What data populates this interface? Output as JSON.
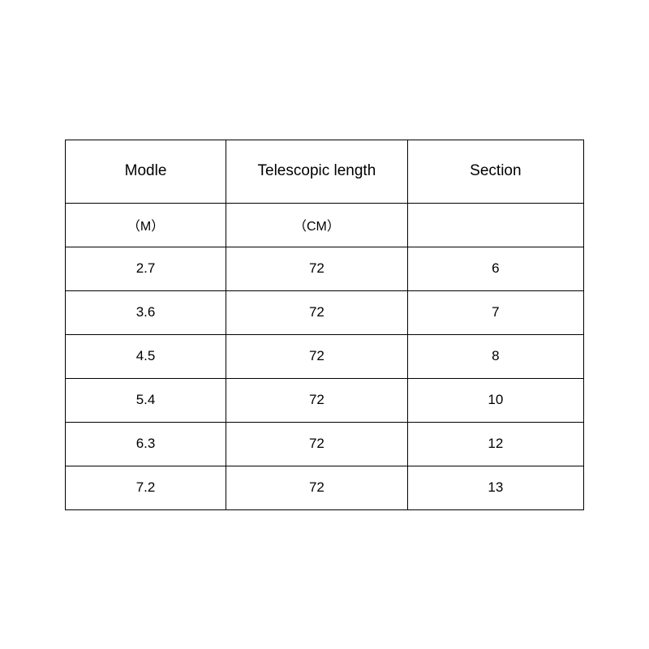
{
  "table": {
    "type": "table",
    "border_color": "#000000",
    "background_color": "#ffffff",
    "text_color": "#000000",
    "header_fontsize": 19,
    "unit_fontsize": 16,
    "data_fontsize": 17,
    "columns": [
      {
        "header": "Modle",
        "unit": "（M）",
        "width_pct": 31
      },
      {
        "header": "Telescopic length",
        "unit": "（CM）",
        "width_pct": 35
      },
      {
        "header": "Section",
        "unit": "",
        "width_pct": 34
      }
    ],
    "rows": [
      [
        "2.7",
        "72",
        "6"
      ],
      [
        "3.6",
        "72",
        "7"
      ],
      [
        "4.5",
        "72",
        "8"
      ],
      [
        "5.4",
        "72",
        "10"
      ],
      [
        "6.3",
        "72",
        "12"
      ],
      [
        "7.2",
        "72",
        "13"
      ]
    ]
  }
}
